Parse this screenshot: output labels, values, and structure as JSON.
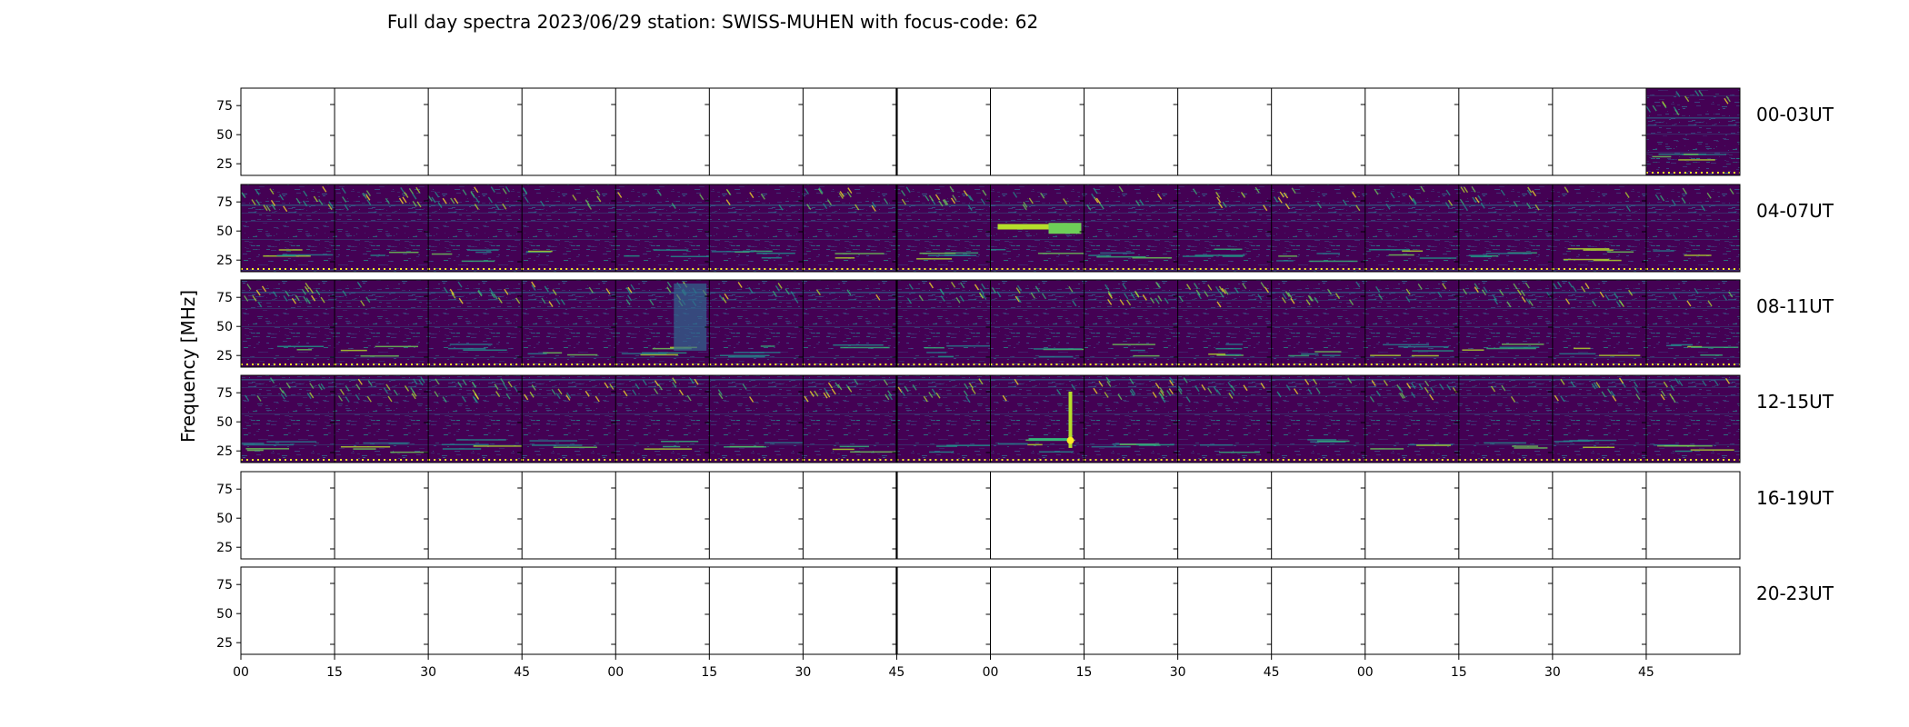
{
  "chart_data": {
    "type": "heatmap",
    "title": "Full day spectra 2023/06/29 station: SWISS-MUHEN with focus-code: 62",
    "ylabel": "Frequency [MHz]",
    "xlabel": "",
    "colormap": "viridis",
    "colors": {
      "low": "#440154",
      "mid": "#31688e",
      "high": "#35b779",
      "peak": "#fde725"
    },
    "ylim": [
      15,
      90
    ],
    "y_ticks": [
      "75",
      "50",
      "25"
    ],
    "y_tick_values": [
      75,
      50,
      25
    ],
    "x_ticks": [
      "00",
      "15",
      "30",
      "45",
      "00",
      "15",
      "30",
      "45",
      "00",
      "15",
      "30",
      "45",
      "00",
      "15",
      "30",
      "45"
    ],
    "panels_per_row": 16,
    "panel_minutes": 15,
    "rows": [
      {
        "label": "00-03UT",
        "data_panels": [
          15
        ]
      },
      {
        "label": "04-07UT",
        "data_panels": [
          0,
          1,
          2,
          3,
          4,
          5,
          6,
          7,
          8,
          9,
          10,
          11,
          12,
          13,
          14,
          15
        ]
      },
      {
        "label": "08-11UT",
        "data_panels": [
          0,
          1,
          2,
          3,
          4,
          5,
          6,
          7,
          8,
          9,
          10,
          11,
          12,
          13,
          14,
          15
        ]
      },
      {
        "label": "12-15UT",
        "data_panels": [
          0,
          1,
          2,
          3,
          4,
          5,
          6,
          7,
          8,
          9,
          10,
          11,
          12,
          13,
          14,
          15
        ]
      },
      {
        "label": "16-19UT",
        "data_panels": []
      },
      {
        "label": "20-23UT",
        "data_panels": []
      }
    ]
  }
}
